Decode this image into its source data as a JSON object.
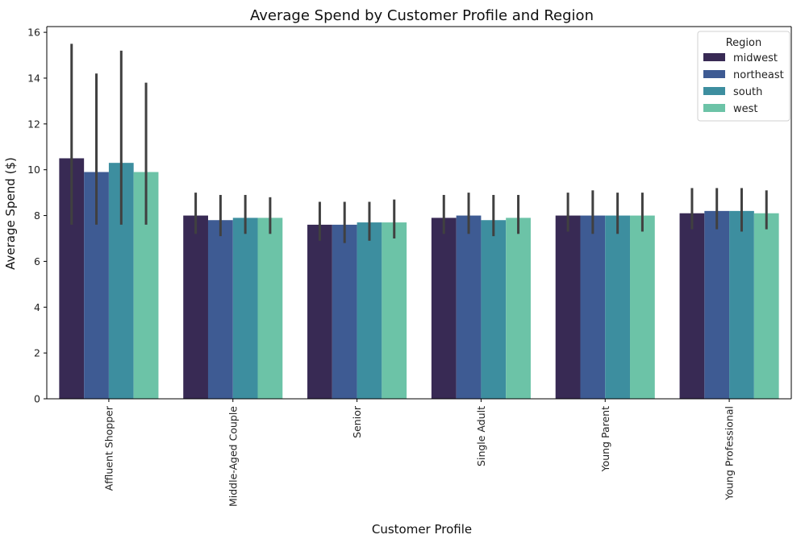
{
  "chart_data": {
    "type": "bar",
    "title": "Average Spend by Customer Profile and Region",
    "xlabel": "Customer Profile",
    "ylabel": "Average Spend ($)",
    "ylim": [
      0,
      16.25
    ],
    "yticks": [
      0,
      2,
      4,
      6,
      8,
      10,
      12,
      14,
      16
    ],
    "grid": false,
    "categories": [
      "Affluent Shopper",
      "Middle-Aged Couple",
      "Senior",
      "Single Adult",
      "Young Parent",
      "Young Professional"
    ],
    "legend": {
      "title": "Region",
      "placement": "top-right"
    },
    "series": [
      {
        "name": "midwest",
        "color": "#382a54",
        "values": [
          10.5,
          8.0,
          7.6,
          7.9,
          8.0,
          8.1
        ],
        "error_low": [
          7.6,
          7.2,
          6.9,
          7.2,
          7.3,
          7.4
        ],
        "error_high": [
          15.5,
          9.0,
          8.6,
          8.9,
          9.0,
          9.2
        ]
      },
      {
        "name": "northeast",
        "color": "#3e5b93",
        "values": [
          9.9,
          7.8,
          7.6,
          8.0,
          8.0,
          8.2
        ],
        "error_low": [
          7.6,
          7.1,
          6.8,
          7.2,
          7.2,
          7.4
        ],
        "error_high": [
          14.2,
          8.9,
          8.6,
          9.0,
          9.1,
          9.2
        ]
      },
      {
        "name": "south",
        "color": "#3d8e9f",
        "values": [
          10.3,
          7.9,
          7.7,
          7.8,
          8.0,
          8.2
        ],
        "error_low": [
          7.6,
          7.2,
          6.9,
          7.1,
          7.2,
          7.3
        ],
        "error_high": [
          15.2,
          8.9,
          8.6,
          8.9,
          9.0,
          9.2
        ]
      },
      {
        "name": "west",
        "color": "#6cc3a7",
        "values": [
          9.9,
          7.9,
          7.7,
          7.9,
          8.0,
          8.1
        ],
        "error_low": [
          7.6,
          7.2,
          7.0,
          7.2,
          7.3,
          7.4
        ],
        "error_high": [
          13.8,
          8.8,
          8.7,
          8.9,
          9.0,
          9.1
        ]
      }
    ],
    "errorbar_color": "#404040"
  }
}
